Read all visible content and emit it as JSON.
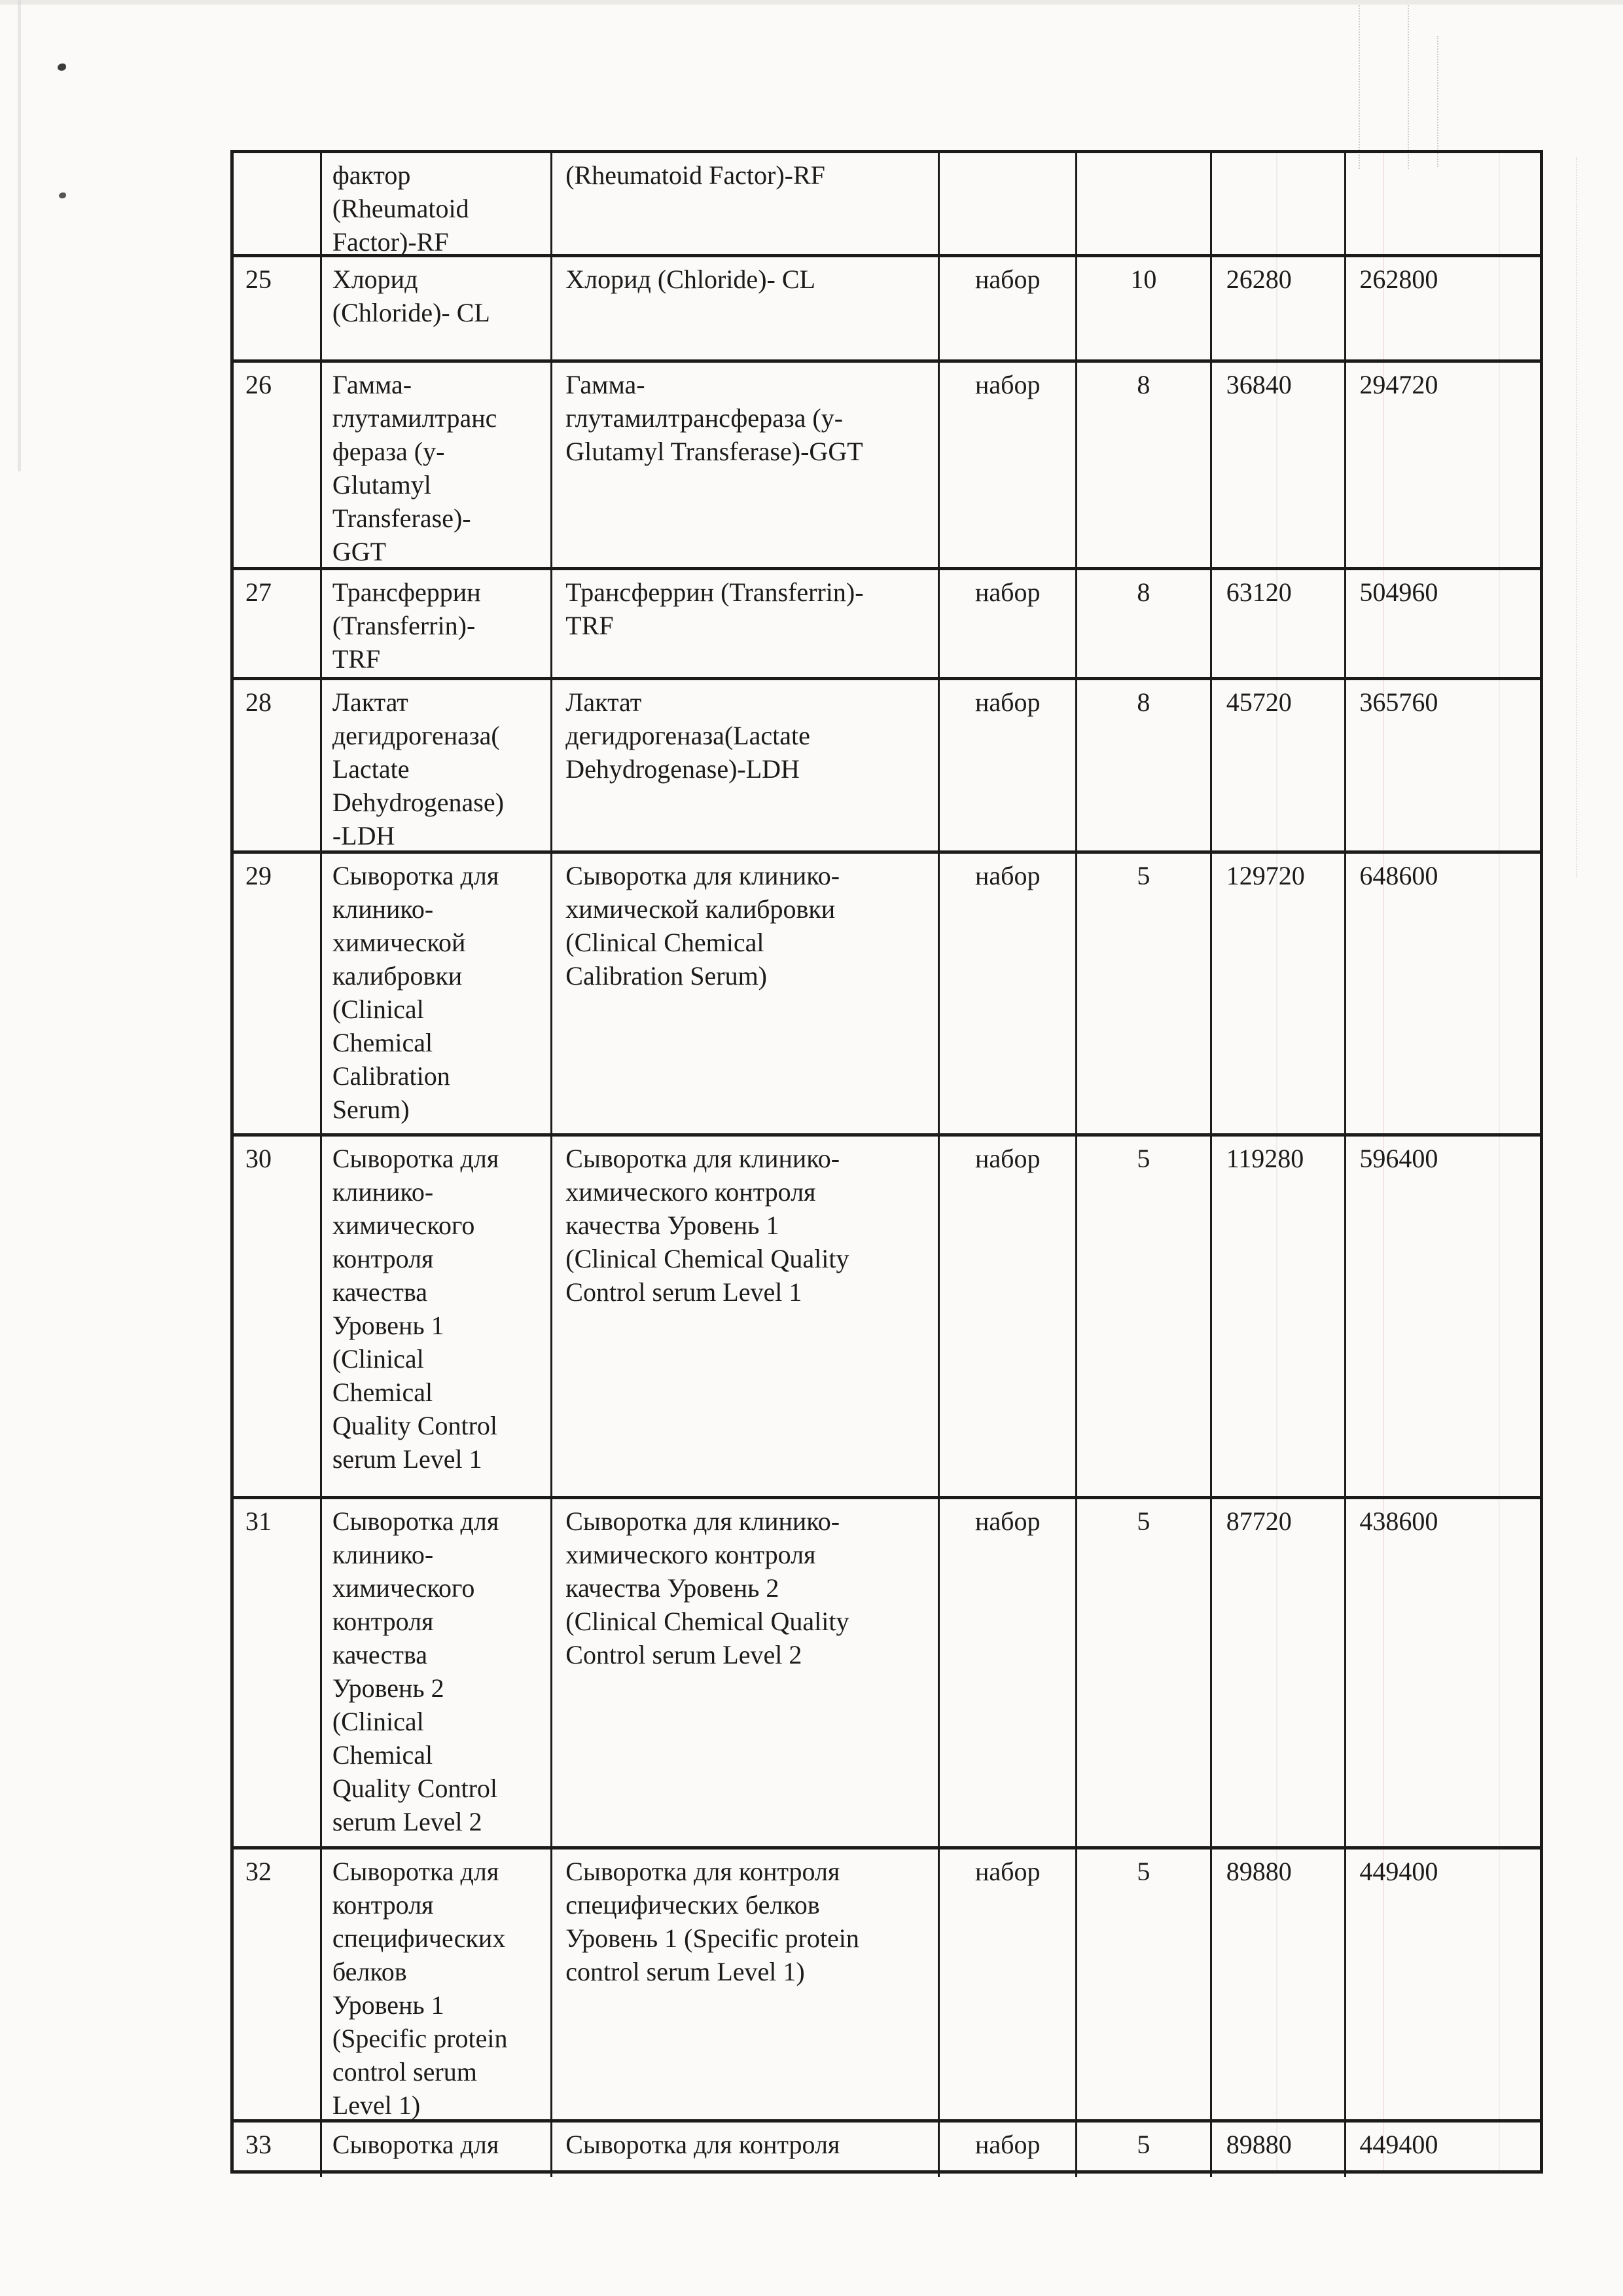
{
  "document": {
    "kind": "scanned-procurement-table-page",
    "unit_word": "набор",
    "colors": {
      "ink": "#1b1b1b",
      "paper": "#fbfaf8"
    },
    "rows": [
      {
        "num": "",
        "name_ru": [
          "фактор",
          "(Rheumatoid",
          "Factor)-RF"
        ],
        "name_en": [
          "(Rheumatoid Factor)-RF"
        ],
        "unit": "",
        "qty": "",
        "unit_price": "",
        "total": ""
      },
      {
        "num": "25",
        "name_ru": [
          "Хлорид",
          "(Chloride)- CL"
        ],
        "name_en": [
          "Хлорид (Chloride)- CL"
        ],
        "unit": "набор",
        "qty": "10",
        "unit_price": "26280",
        "total": "262800"
      },
      {
        "num": "26",
        "name_ru": [
          "Гамма-",
          "глутамилтранс",
          "фераза (y-",
          "Glutamyl",
          "Transferase)-",
          "GGT"
        ],
        "name_en": [
          "Гамма-",
          "глутамилтрансфераза (y-",
          "Glutamyl Transferase)-GGT"
        ],
        "unit": "набор",
        "qty": "8",
        "unit_price": "36840",
        "total": "294720"
      },
      {
        "num": "27",
        "name_ru": [
          "Трансферрин",
          "(Transferrin)-",
          "TRF"
        ],
        "name_en": [
          "Трансферрин (Transferrin)-",
          "TRF"
        ],
        "unit": "набор",
        "qty": "8",
        "unit_price": "63120",
        "total": "504960"
      },
      {
        "num": "28",
        "name_ru": [
          "Лактат",
          "дегидрогеназа(",
          "Lactate",
          "Dehydrogenase)",
          "-LDH"
        ],
        "name_en": [
          "Лактат",
          "дегидрогеназа(Lactate",
          "Dehydrogenase)-LDH"
        ],
        "unit": "набор",
        "qty": "8",
        "unit_price": "45720",
        "total": "365760"
      },
      {
        "num": "29",
        "name_ru": [
          "Сыворотка для",
          "клинико-",
          "химической",
          "калибровки",
          "(Clinical",
          "Chemical",
          "Calibration",
          "Serum)"
        ],
        "name_en": [
          "Сыворотка для клинико-",
          "химической калибровки",
          "(Clinical Chemical",
          "Calibration Serum)"
        ],
        "unit": "набор",
        "qty": "5",
        "unit_price": "129720",
        "total": "648600"
      },
      {
        "num": "30",
        "name_ru": [
          "Сыворотка для",
          "клинико-",
          "химического",
          "контроля",
          "качества",
          "Уровень 1",
          "(Clinical",
          "Chemical",
          "Quality Control",
          "serum Level 1"
        ],
        "name_en": [
          "Сыворотка для клинико-",
          "химического контроля",
          "качества Уровень 1",
          "(Clinical Chemical Quality",
          "Control serum Level 1"
        ],
        "unit": "набор",
        "qty": "5",
        "unit_price": "119280",
        "total": "596400"
      },
      {
        "num": "31",
        "name_ru": [
          "Сыворотка для",
          "клинико-",
          "химического",
          "контроля",
          "качества",
          "Уровень 2",
          "(Clinical",
          "Chemical",
          "Quality Control",
          "serum Level 2"
        ],
        "name_en": [
          "Сыворотка для клинико-",
          "химического контроля",
          "качества Уровень 2",
          "(Clinical Chemical Quality",
          "Control serum Level 2"
        ],
        "unit": "набор",
        "qty": "5",
        "unit_price": "87720",
        "total": "438600"
      },
      {
        "num": "32",
        "name_ru": [
          "Сыворотка для",
          "контроля",
          "специфических",
          "белков",
          "Уровень 1",
          "(Specific protein",
          "control serum",
          "Level 1)"
        ],
        "name_en": [
          "Сыворотка для контроля",
          "специфических белков",
          "Уровень 1 (Specific protein",
          "control serum Level 1)"
        ],
        "unit": "набор",
        "qty": "5",
        "unit_price": "89880",
        "total": "449400"
      },
      {
        "num": "33",
        "name_ru": [
          "Сыворотка для"
        ],
        "name_en": [
          "Сыворотка для контроля"
        ],
        "unit": "набор",
        "qty": "5",
        "unit_price": "89880",
        "total": "449400"
      }
    ]
  }
}
